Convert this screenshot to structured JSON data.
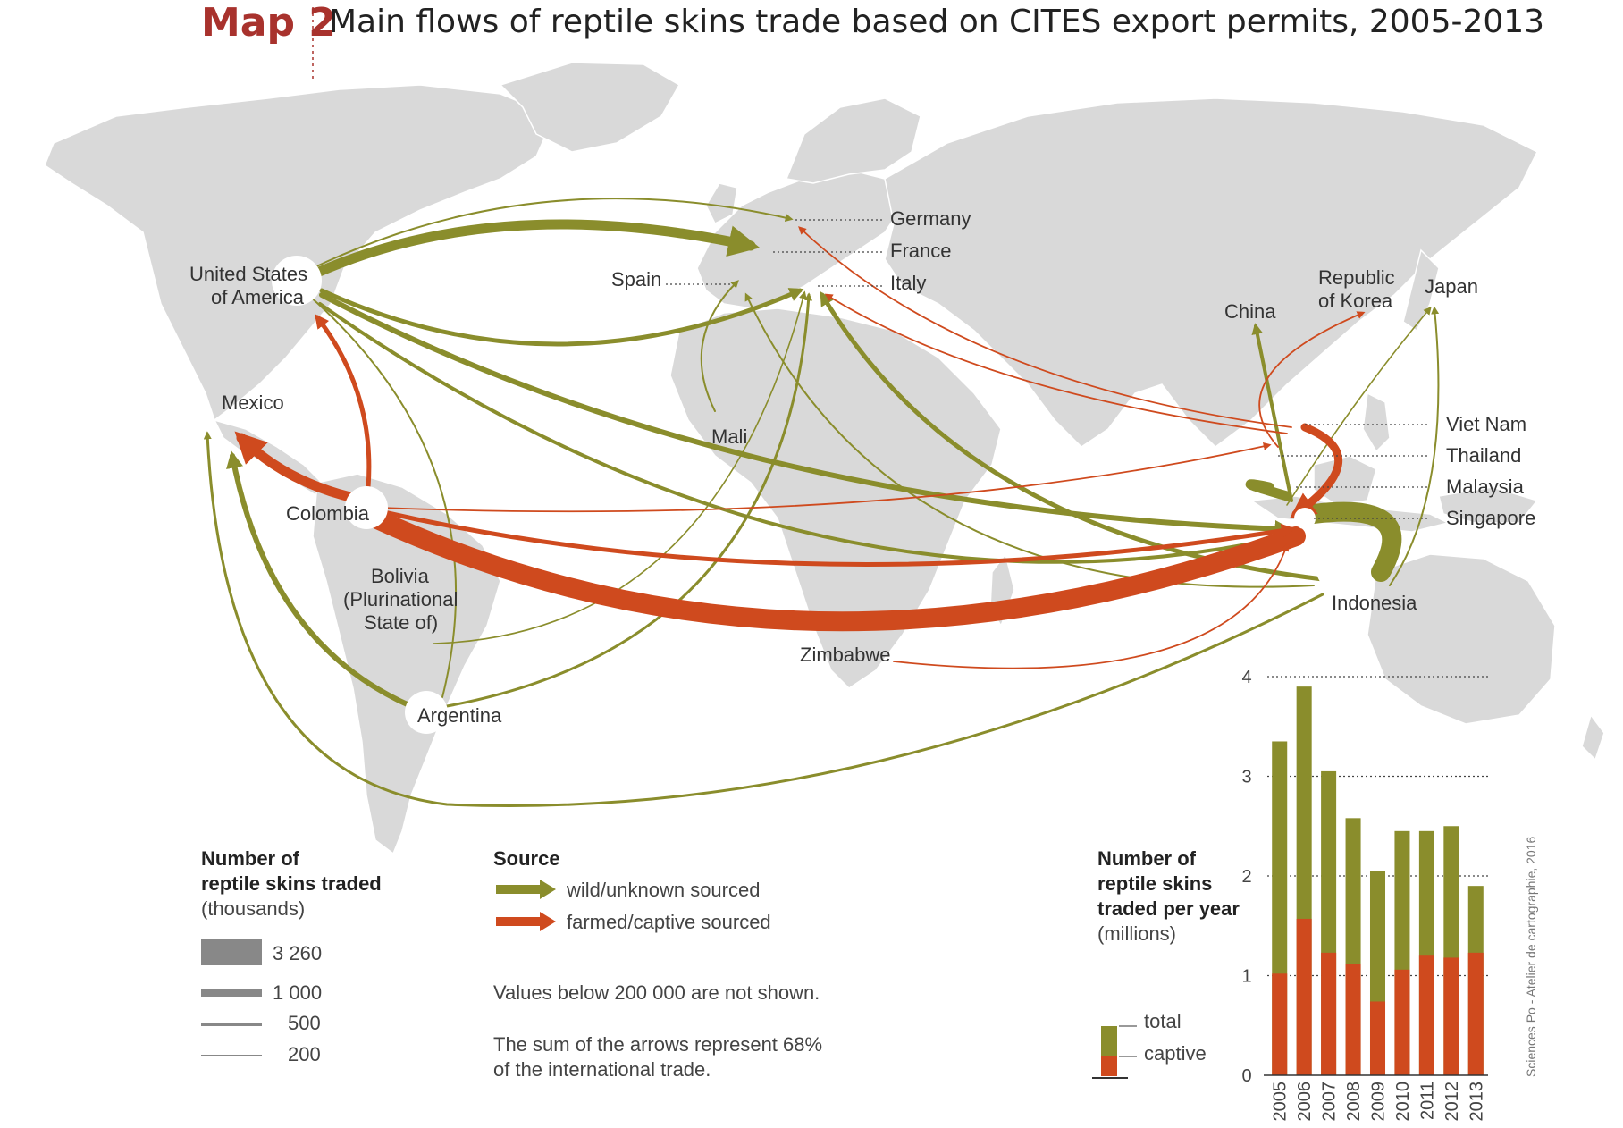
{
  "title": {
    "map_label": "Map 2",
    "text": "Main flows of reptile skins trade based on CITES export permits, 2005-2013"
  },
  "colors": {
    "wild": "#8a8d2c",
    "captive": "#cf4a1e",
    "land": "#d9d9d9",
    "accent": "#a8322d"
  },
  "places": {
    "usa_1": "United States",
    "usa_2": "of America",
    "mexico": "Mexico",
    "colombia": "Colombia",
    "bolivia_1": "Bolivia",
    "bolivia_2": "(Plurinational",
    "bolivia_3": "State of)",
    "argentina": "Argentina",
    "spain": "Spain",
    "germany": "Germany",
    "france": "France",
    "italy": "Italy",
    "mali": "Mali",
    "zimbabwe": "Zimbabwe",
    "china": "China",
    "korea_1": "Republic",
    "korea_2": "of Korea",
    "japan": "Japan",
    "vietnam": "Viet Nam",
    "thailand": "Thailand",
    "malaysia": "Malaysia",
    "singapore": "Singapore",
    "indonesia": "Indonesia"
  },
  "legend_size": {
    "heading_1": "Number of",
    "heading_2": "reptile skins traded",
    "unit": "(thousands)",
    "items": [
      "3 260",
      "1 000",
      "500",
      "200"
    ]
  },
  "legend_source": {
    "heading": "Source",
    "wild": "wild/unknown sourced",
    "captive": "farmed/captive sourced",
    "note_1": "Values below 200 000 are not shown.",
    "note_2": "The sum of the arrows represent 68%",
    "note_3": "of the international trade."
  },
  "chart_legend": {
    "heading_1": "Number of",
    "heading_2": "reptile skins",
    "heading_3": "traded per year",
    "unit": "(millions)",
    "total": "total",
    "captive": "captive"
  },
  "chart_data": {
    "type": "bar",
    "title": "",
    "xlabel": "",
    "ylabel": "",
    "ylim": [
      0,
      4
    ],
    "yticks": [
      "0",
      "1",
      "2",
      "3",
      "4"
    ],
    "categories": [
      "2005",
      "2006",
      "2007",
      "2008",
      "2009",
      "2010",
      "2011",
      "2012",
      "2013"
    ],
    "series": [
      {
        "name": "total",
        "values": [
          3.35,
          3.9,
          3.05,
          2.58,
          2.05,
          2.45,
          2.45,
          2.5,
          1.9
        ]
      },
      {
        "name": "captive",
        "values": [
          1.02,
          1.57,
          1.23,
          1.12,
          0.74,
          1.06,
          1.2,
          1.18,
          1.23
        ]
      }
    ],
    "grid": "dotted",
    "stacked": true
  },
  "credit": "Sciences Po - Atelier de cartographie, 2016"
}
